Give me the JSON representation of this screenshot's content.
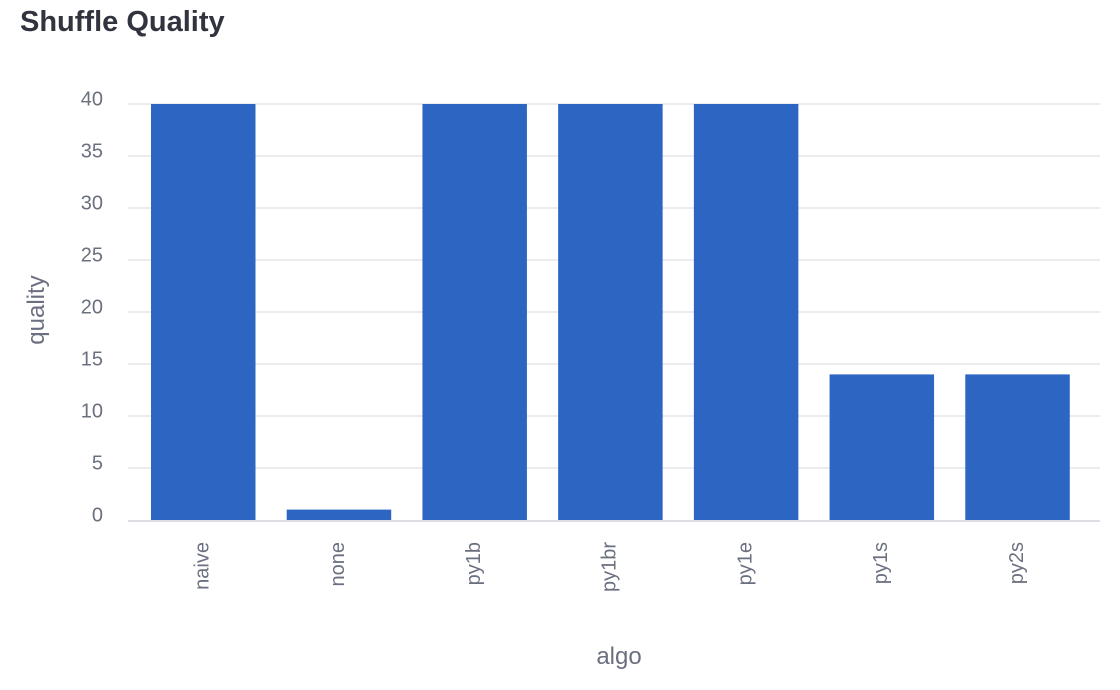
{
  "chart_data": {
    "type": "bar",
    "title": "Shuffle Quality",
    "xlabel": "algo",
    "ylabel": "quality",
    "categories": [
      "naive",
      "none",
      "py1b",
      "py1br",
      "py1e",
      "py1s",
      "py2s"
    ],
    "values": [
      40,
      1,
      40,
      40,
      40,
      14,
      14
    ],
    "ylim": [
      0,
      40
    ],
    "yticks": [
      "0",
      "5",
      "10",
      "15",
      "20",
      "25",
      "30",
      "35",
      "40"
    ],
    "grid": true,
    "legend": "none",
    "bar_color": "#2c66c2"
  }
}
